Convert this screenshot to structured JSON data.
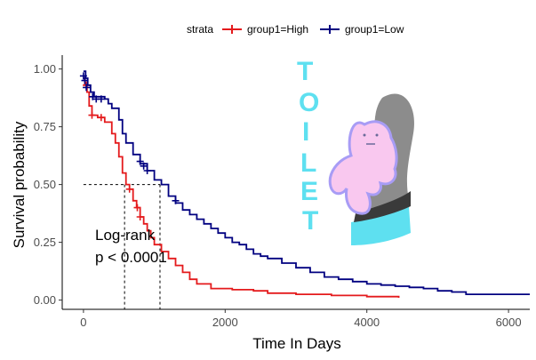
{
  "chart_data": {
    "type": "line",
    "subtype": "kaplan-meier",
    "title": "",
    "xlabel": "Time In Days",
    "ylabel": "Survival probability",
    "xlim": [
      -300,
      6300
    ],
    "ylim": [
      -0.04,
      1.06
    ],
    "x_ticks": [
      0,
      2000,
      4000,
      6000
    ],
    "y_ticks": [
      0.0,
      0.25,
      0.5,
      0.75,
      1.0
    ],
    "x_tick_labels": [
      "0",
      "2000",
      "4000",
      "6000"
    ],
    "y_tick_labels": [
      "0.00",
      "0.25",
      "0.50",
      "0.75",
      "1.00"
    ],
    "grid": false,
    "legend": {
      "title": "strata",
      "placement": "top",
      "entries": [
        "group1=High",
        "group1=Low"
      ]
    },
    "series": [
      {
        "name": "group1=High",
        "color": "#e41a1c",
        "points": [
          [
            0,
            0.96
          ],
          [
            20,
            0.93
          ],
          [
            50,
            0.9
          ],
          [
            80,
            0.84
          ],
          [
            120,
            0.8
          ],
          [
            200,
            0.79
          ],
          [
            300,
            0.77
          ],
          [
            400,
            0.72
          ],
          [
            450,
            0.68
          ],
          [
            500,
            0.62
          ],
          [
            550,
            0.55
          ],
          [
            600,
            0.5
          ],
          [
            650,
            0.48
          ],
          [
            700,
            0.43
          ],
          [
            750,
            0.4
          ],
          [
            800,
            0.36
          ],
          [
            850,
            0.33
          ],
          [
            900,
            0.3
          ],
          [
            950,
            0.27
          ],
          [
            1000,
            0.24
          ],
          [
            1100,
            0.21
          ],
          [
            1200,
            0.18
          ],
          [
            1300,
            0.15
          ],
          [
            1400,
            0.12
          ],
          [
            1500,
            0.09
          ],
          [
            1600,
            0.07
          ],
          [
            1800,
            0.05
          ],
          [
            2100,
            0.045
          ],
          [
            2400,
            0.04
          ],
          [
            2600,
            0.03
          ],
          [
            3000,
            0.025
          ],
          [
            3500,
            0.02
          ],
          [
            4000,
            0.015
          ],
          [
            4450,
            0.01
          ]
        ],
        "censor": [
          [
            40,
            0.93
          ],
          [
            120,
            0.8
          ],
          [
            250,
            0.79
          ],
          [
            650,
            0.48
          ],
          [
            760,
            0.4
          ],
          [
            800,
            0.36
          ]
        ]
      },
      {
        "name": "group1=Low",
        "color": "#000080",
        "points": [
          [
            0,
            0.99
          ],
          [
            30,
            0.96
          ],
          [
            60,
            0.93
          ],
          [
            100,
            0.9
          ],
          [
            150,
            0.88
          ],
          [
            300,
            0.87
          ],
          [
            350,
            0.85
          ],
          [
            400,
            0.83
          ],
          [
            500,
            0.78
          ],
          [
            550,
            0.72
          ],
          [
            600,
            0.68
          ],
          [
            700,
            0.63
          ],
          [
            800,
            0.59
          ],
          [
            900,
            0.56
          ],
          [
            1000,
            0.52
          ],
          [
            1100,
            0.5
          ],
          [
            1200,
            0.45
          ],
          [
            1300,
            0.42
          ],
          [
            1400,
            0.39
          ],
          [
            1500,
            0.37
          ],
          [
            1600,
            0.35
          ],
          [
            1700,
            0.33
          ],
          [
            1800,
            0.31
          ],
          [
            1900,
            0.29
          ],
          [
            2000,
            0.27
          ],
          [
            2100,
            0.25
          ],
          [
            2200,
            0.24
          ],
          [
            2300,
            0.22
          ],
          [
            2400,
            0.2
          ],
          [
            2500,
            0.19
          ],
          [
            2600,
            0.18
          ],
          [
            2800,
            0.16
          ],
          [
            3000,
            0.14
          ],
          [
            3200,
            0.12
          ],
          [
            3400,
            0.1
          ],
          [
            3600,
            0.09
          ],
          [
            3800,
            0.08
          ],
          [
            4000,
            0.07
          ],
          [
            4200,
            0.065
          ],
          [
            4400,
            0.06
          ],
          [
            4600,
            0.055
          ],
          [
            4800,
            0.05
          ],
          [
            5000,
            0.04
          ],
          [
            5200,
            0.035
          ],
          [
            5400,
            0.025
          ],
          [
            6300,
            0.025
          ]
        ],
        "censor": [
          [
            0,
            0.97
          ],
          [
            20,
            0.95
          ],
          [
            40,
            0.92
          ],
          [
            130,
            0.88
          ],
          [
            180,
            0.87
          ],
          [
            250,
            0.87
          ],
          [
            800,
            0.6
          ],
          [
            850,
            0.58
          ],
          [
            900,
            0.56
          ],
          [
            1300,
            0.43
          ]
        ]
      }
    ],
    "median_lines": [
      {
        "x": 580,
        "y": 0.5
      },
      {
        "x": 1080,
        "y": 0.5
      }
    ],
    "annotation_lines": [
      "Log-rank",
      "p < 0.0001"
    ],
    "overlay": {
      "letters": [
        "T",
        "O",
        "I",
        "L",
        "E",
        "T"
      ],
      "text_color": "#5ee0f0",
      "figure_color": "#f9c8ef",
      "outline_color": "#a89cf5",
      "shadow_color": "#8c8c8c"
    }
  }
}
